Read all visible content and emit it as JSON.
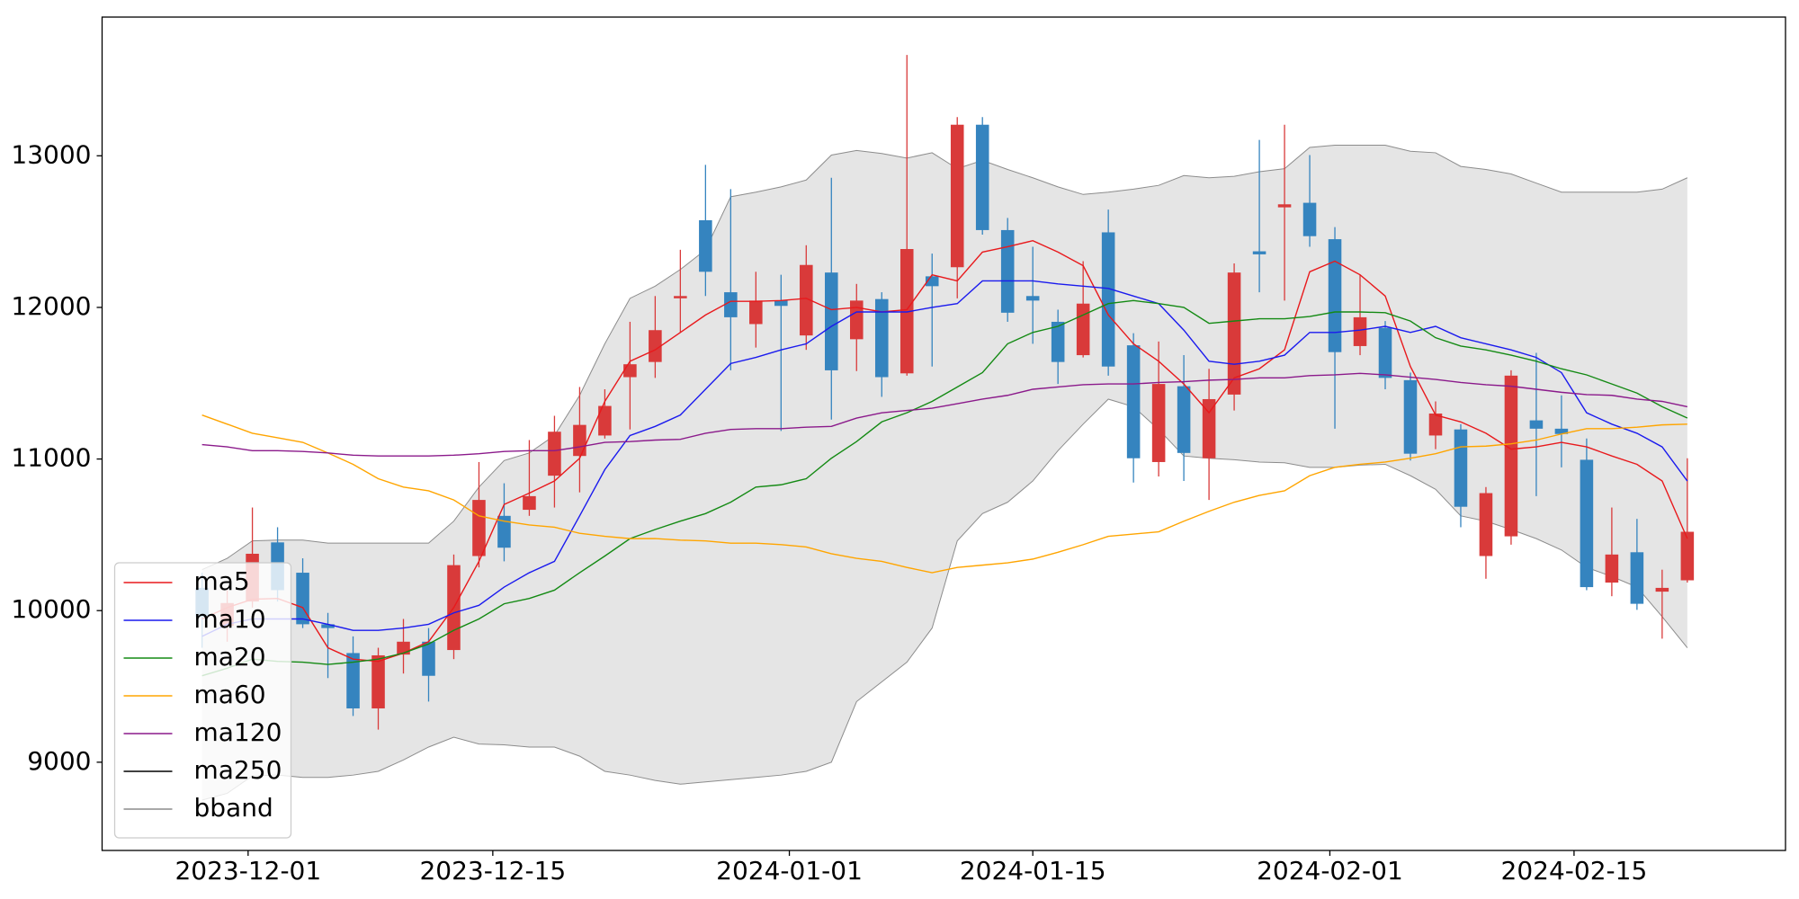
{
  "chart_data": {
    "type": "candlestick",
    "xlim": [
      -3.97,
      62.9
    ],
    "xticks": [
      {
        "value": 1.83,
        "label": "2023-12-01"
      },
      {
        "value": 11.55,
        "label": "2023-12-15"
      },
      {
        "value": 23.33,
        "label": "2024-01-01"
      },
      {
        "value": 33.0,
        "label": "2024-01-15"
      },
      {
        "value": 44.8,
        "label": "2024-02-01"
      },
      {
        "value": 54.5,
        "label": "2024-02-15"
      }
    ],
    "ylim": [
      8418,
      13915
    ],
    "yticks": [
      9000,
      10000,
      11000,
      12000,
      13000
    ],
    "up_color": "#d93a3a",
    "down_color": "#3584bf",
    "open": [
      10150,
      9900,
      10060,
      10450,
      10250,
      9910,
      9720,
      9355,
      9710,
      9795,
      9740,
      10360,
      10625,
      10665,
      10890,
      11020,
      11155,
      11540,
      11640,
      12060,
      12575,
      12100,
      11890,
      12045,
      11815,
      12230,
      11790,
      12055,
      11565,
      12205,
      12265,
      13205,
      12510,
      12075,
      11905,
      11685,
      12495,
      11750,
      10980,
      11480,
      11005,
      11425,
      12370,
      12660,
      12690,
      12450,
      11745,
      11865,
      11520,
      11155,
      11195,
      10360,
      10490,
      11255,
      11200,
      10995,
      10185,
      10385,
      10125,
      10200
    ],
    "high": [
      10250,
      10135,
      10680,
      10550,
      10345,
      9985,
      9830,
      9755,
      9945,
      9885,
      10370,
      10980,
      10840,
      11125,
      11285,
      11475,
      11460,
      11905,
      12075,
      12380,
      12940,
      12780,
      12235,
      12215,
      12410,
      12855,
      12155,
      12100,
      13665,
      12355,
      13255,
      13255,
      12590,
      12400,
      11985,
      12305,
      12645,
      11830,
      11775,
      11685,
      11595,
      12290,
      13105,
      13205,
      13005,
      12530,
      12215,
      11910,
      11570,
      11380,
      11230,
      10815,
      11585,
      11700,
      11420,
      11135,
      10680,
      10605,
      10270,
      11005
    ],
    "low": [
      9755,
      9795,
      10020,
      10060,
      9885,
      9555,
      9305,
      9215,
      9585,
      9400,
      9680,
      10285,
      10325,
      10625,
      10680,
      10780,
      11135,
      11195,
      11535,
      11835,
      12075,
      11585,
      11735,
      11185,
      11720,
      11260,
      11580,
      11410,
      11550,
      11610,
      12060,
      12480,
      11905,
      11760,
      11495,
      11670,
      11550,
      10845,
      10885,
      10855,
      10730,
      11320,
      12100,
      12045,
      12400,
      11200,
      11685,
      11460,
      10990,
      11065,
      10550,
      10210,
      10435,
      10755,
      10945,
      10135,
      10095,
      10005,
      9815,
      10185
    ],
    "close": [
      9960,
      10050,
      10375,
      10135,
      9910,
      9885,
      9355,
      9705,
      9795,
      9570,
      10300,
      10730,
      10415,
      10755,
      11180,
      11225,
      11350,
      11625,
      11850,
      12075,
      12235,
      11935,
      12045,
      12010,
      12280,
      11585,
      12045,
      11540,
      12385,
      12140,
      13205,
      12510,
      11965,
      12045,
      11640,
      12025,
      11610,
      11005,
      11495,
      11040,
      11395,
      12230,
      12350,
      12680,
      12470,
      11705,
      11935,
      11535,
      11035,
      11300,
      10685,
      10775,
      11550,
      11200,
      11165,
      10155,
      10370,
      10045,
      10150,
      10520
    ],
    "series": [
      {
        "name": "ma5",
        "color": "#e8191c",
        "values": [
          9945,
          10020,
          10075,
          10080,
          10020,
          9755,
          9680,
          9665,
          9720,
          9795,
          10020,
          10325,
          10700,
          10775,
          10855,
          11005,
          11380,
          11645,
          11720,
          11835,
          11950,
          12040,
          12040,
          12045,
          12060,
          11985,
          12000,
          11970,
          11985,
          12215,
          12175,
          12365,
          12400,
          12440,
          12365,
          12275,
          11950,
          11760,
          11645,
          11495,
          11305,
          11535,
          11595,
          11720,
          12235,
          12305,
          12215,
          12075,
          11610,
          11290,
          11245,
          11170,
          11065,
          11080,
          11110,
          11080,
          11020,
          10965,
          10855,
          10475
        ]
      },
      {
        "name": "ma10",
        "color": "#1a1aee",
        "values": [
          9830,
          9910,
          9945,
          9945,
          9945,
          9910,
          9870,
          9870,
          9885,
          9910,
          9985,
          10035,
          10155,
          10250,
          10325,
          10625,
          10930,
          11155,
          11215,
          11290,
          11460,
          11630,
          11670,
          11720,
          11760,
          11875,
          11970,
          11970,
          11970,
          12000,
          12025,
          12175,
          12175,
          12175,
          12155,
          12140,
          12125,
          12075,
          12025,
          11850,
          11645,
          11625,
          11645,
          11685,
          11835,
          11835,
          11850,
          11875,
          11835,
          11875,
          11800,
          11760,
          11720,
          11670,
          11570,
          11305,
          11230,
          11170,
          11080,
          10855
        ]
      },
      {
        "name": "ma20",
        "color": "#148a14",
        "values": [
          9570,
          9620,
          9680,
          9665,
          9660,
          9645,
          9660,
          9680,
          9720,
          9780,
          9870,
          9945,
          10045,
          10080,
          10135,
          10250,
          10360,
          10475,
          10535,
          10590,
          10640,
          10715,
          10815,
          10830,
          10870,
          11005,
          11115,
          11245,
          11305,
          11380,
          11475,
          11570,
          11760,
          11835,
          11875,
          11950,
          12025,
          12045,
          12025,
          12000,
          11895,
          11910,
          11925,
          11925,
          11940,
          11970,
          11970,
          11965,
          11910,
          11800,
          11745,
          11720,
          11685,
          11645,
          11595,
          11555,
          11495,
          11435,
          11345,
          11270
        ]
      },
      {
        "name": "ma60",
        "color": "#ffa500",
        "values": [
          11290,
          11230,
          11170,
          11140,
          11110,
          11040,
          10965,
          10870,
          10815,
          10790,
          10730,
          10625,
          10590,
          10565,
          10550,
          10510,
          10490,
          10475,
          10475,
          10465,
          10460,
          10445,
          10445,
          10435,
          10420,
          10375,
          10345,
          10325,
          10285,
          10250,
          10285,
          10300,
          10315,
          10340,
          10385,
          10435,
          10490,
          10505,
          10520,
          10590,
          10655,
          10715,
          10760,
          10790,
          10890,
          10945,
          10965,
          10980,
          11005,
          11035,
          11080,
          11085,
          11100,
          11125,
          11165,
          11200,
          11200,
          11210,
          11225,
          11230
        ]
      },
      {
        "name": "ma120",
        "color": "#8b1a8b",
        "values": [
          11095,
          11080,
          11055,
          11055,
          11050,
          11040,
          11025,
          11020,
          11020,
          11020,
          11025,
          11035,
          11050,
          11055,
          11055,
          11080,
          11110,
          11115,
          11125,
          11130,
          11170,
          11195,
          11200,
          11200,
          11210,
          11215,
          11270,
          11305,
          11320,
          11335,
          11365,
          11395,
          11420,
          11460,
          11475,
          11490,
          11495,
          11495,
          11505,
          11510,
          11520,
          11525,
          11535,
          11535,
          11550,
          11555,
          11565,
          11555,
          11540,
          11525,
          11505,
          11490,
          11480,
          11460,
          11440,
          11425,
          11420,
          11395,
          11380,
          11345
        ]
      },
      {
        "name": "ma250",
        "color": "#000000"
      },
      {
        "name": "bband",
        "color": "#8c8c8c",
        "fill": "#e5e5e5",
        "upper": [
          10270,
          10345,
          10460,
          10465,
          10465,
          10445,
          10445,
          10445,
          10445,
          10445,
          10590,
          10815,
          10990,
          11040,
          11155,
          11420,
          11760,
          12060,
          12140,
          12250,
          12380,
          12730,
          12760,
          12795,
          12840,
          13005,
          13035,
          13015,
          12985,
          13020,
          12915,
          12970,
          12910,
          12855,
          12795,
          12745,
          12760,
          12780,
          12805,
          12870,
          12855,
          12865,
          12895,
          12915,
          13055,
          13070,
          13070,
          13070,
          13030,
          13020,
          12930,
          12910,
          12880,
          12820,
          12760,
          12760,
          12760,
          12760,
          12780,
          12855
        ],
        "lower": [
          8750,
          8795,
          8910,
          8915,
          8900,
          8900,
          8915,
          8940,
          9015,
          9100,
          9165,
          9120,
          9115,
          9100,
          9100,
          9040,
          8940,
          8915,
          8880,
          8855,
          8870,
          8885,
          8900,
          8915,
          8940,
          9000,
          9400,
          9530,
          9660,
          9885,
          10460,
          10640,
          10715,
          10855,
          11055,
          11230,
          11395,
          11345,
          11195,
          11020,
          11005,
          10995,
          10980,
          10975,
          10945,
          10945,
          10960,
          10965,
          10890,
          10800,
          10625,
          10590,
          10535,
          10475,
          10400,
          10285,
          10225,
          10155,
          9960,
          9755
        ]
      }
    ],
    "legend": "lower left"
  }
}
